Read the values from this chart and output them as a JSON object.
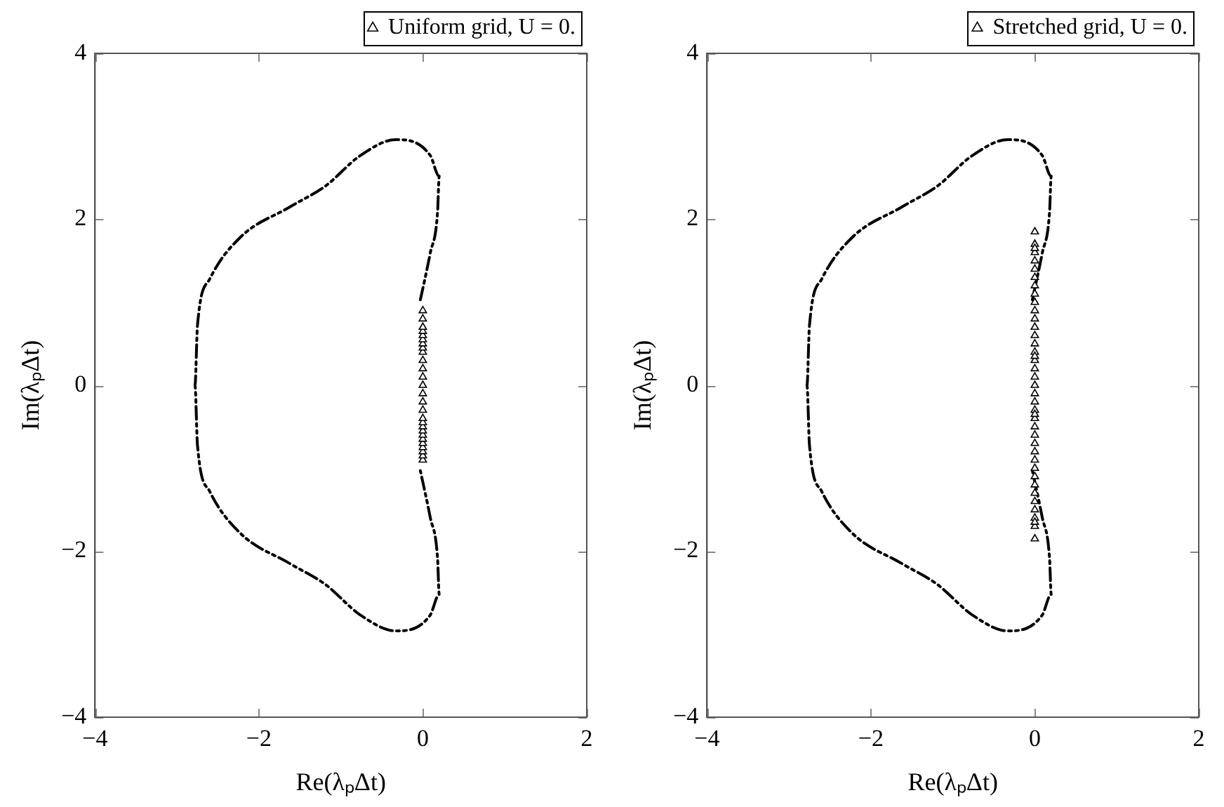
{
  "chart_data": [
    {
      "type": "scatter",
      "xlabel": "Re(λₚΔt)",
      "ylabel": "Im(λₚΔt)",
      "xlim": [
        -4,
        2
      ],
      "ylim": [
        -4,
        4
      ],
      "xticks": [
        -4,
        -2,
        0,
        2
      ],
      "yticks": [
        -4,
        -2,
        0,
        2,
        4
      ],
      "legend": "top",
      "grid": false,
      "series": [
        {
          "type": "line",
          "color": "#000000",
          "line_style": "dashed",
          "marker": "none",
          "x": [
            -0.03,
            0.09,
            0.18,
            0.2,
            0.09,
            -0.33,
            -0.76,
            -1.19,
            -1.62,
            -2.23,
            -2.6,
            -2.75,
            -2.78,
            -2.75,
            -2.6,
            -2.23,
            -1.62,
            -1.19,
            -0.76,
            -0.33,
            0.09,
            0.2,
            0.18,
            0.09,
            -0.03
          ],
          "values": [
            1.03,
            1.59,
            2.09,
            2.52,
            2.77,
            2.96,
            2.77,
            2.4,
            2.15,
            1.78,
            1.28,
            0.72,
            0,
            -0.72,
            -1.28,
            -1.78,
            -2.15,
            -2.4,
            -2.77,
            -2.96,
            -2.77,
            -2.52,
            -2.09,
            -1.59,
            -1.03
          ]
        },
        {
          "type": "scatter",
          "name": "Uniform grid, U = 0.",
          "color": "#000000",
          "marker": "triangle",
          "x": [
            0,
            0,
            0,
            0,
            0,
            0,
            0,
            0,
            0,
            0,
            0,
            0,
            0,
            0,
            0,
            0,
            0,
            0,
            0,
            0,
            0,
            0,
            0,
            0,
            0,
            0,
            0
          ],
          "values": [
            -0.9,
            -0.85,
            -0.8,
            -0.75,
            -0.7,
            -0.65,
            -0.6,
            -0.55,
            -0.5,
            -0.45,
            -0.4,
            -0.3,
            -0.2,
            -0.1,
            0,
            0.1,
            0.2,
            0.3,
            0.4,
            0.45,
            0.5,
            0.55,
            0.6,
            0.65,
            0.7,
            0.8,
            0.9
          ]
        }
      ]
    },
    {
      "type": "scatter",
      "xlabel": "Re(λₚΔt)",
      "ylabel": "Im(λₚΔt)",
      "xlim": [
        -4,
        2
      ],
      "ylim": [
        -4,
        4
      ],
      "xticks": [
        -4,
        -2,
        0,
        2
      ],
      "yticks": [
        -4,
        -2,
        0,
        2,
        4
      ],
      "legend": "top",
      "grid": false,
      "series": [
        {
          "type": "line",
          "color": "#000000",
          "line_style": "dashed",
          "marker": "none",
          "x": [
            -0.03,
            0.09,
            0.18,
            0.2,
            0.09,
            -0.33,
            -0.76,
            -1.19,
            -1.62,
            -2.23,
            -2.6,
            -2.75,
            -2.78,
            -2.75,
            -2.6,
            -2.23,
            -1.62,
            -1.19,
            -0.76,
            -0.33,
            0.09,
            0.2,
            0.18,
            0.09,
            -0.03
          ],
          "values": [
            1.03,
            1.59,
            2.09,
            2.52,
            2.77,
            2.96,
            2.77,
            2.4,
            2.15,
            1.78,
            1.28,
            0.72,
            0,
            -0.72,
            -1.28,
            -1.78,
            -2.15,
            -2.4,
            -2.77,
            -2.96,
            -2.77,
            -2.52,
            -2.09,
            -1.59,
            -1.03
          ]
        },
        {
          "type": "scatter",
          "name": "Stretched grid, U = 0.",
          "color": "#000000",
          "marker": "triangle",
          "x": [
            0,
            0,
            0,
            0,
            0,
            0,
            0,
            0,
            0,
            0,
            0,
            0,
            0,
            0,
            0,
            0,
            0,
            0,
            0,
            0,
            0,
            0,
            0,
            0,
            0,
            0,
            0,
            0,
            0,
            0,
            0,
            0,
            0,
            0,
            0,
            0,
            0,
            0,
            0,
            0,
            0
          ],
          "values": [
            -1.85,
            -1.7,
            -1.6,
            -1.5,
            -1.4,
            -1.3,
            -1.2,
            -1.1,
            -1.0,
            -0.9,
            -0.8,
            -0.7,
            -0.6,
            -0.5,
            -0.4,
            -0.3,
            -0.2,
            -0.1,
            0,
            0.1,
            0.2,
            0.3,
            0.4,
            0.5,
            0.6,
            0.7,
            0.8,
            0.9,
            1.0,
            1.1,
            1.2,
            1.3,
            1.4,
            1.5,
            1.6,
            1.7,
            1.85,
            -1.65,
            1.65,
            -0.35,
            0.35
          ]
        }
      ]
    }
  ]
}
